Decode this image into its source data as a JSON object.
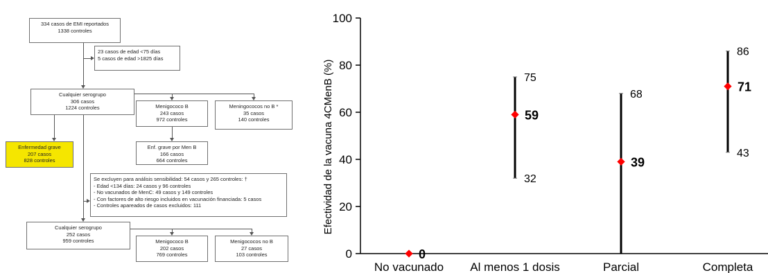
{
  "flowchart": {
    "top": [
      "334 casos de EMI reportados",
      "1338 controles"
    ],
    "exclusion1": [
      "23 casos de edad <75 días",
      "5 casos de edad >1825 días"
    ],
    "any1": [
      "Cualquier serogrupo",
      "306 casos",
      "1224 controles"
    ],
    "menb1": [
      "Menigococo B",
      "243 casos",
      "972 controles"
    ],
    "nonb1": [
      "Meningococos no B *",
      "35 casos",
      "140 controles"
    ],
    "severe": [
      "Enfermedad grave",
      "207 casos",
      "828 controles"
    ],
    "severe_menb": [
      "Enf. grave por Men B",
      "166 casos",
      "664 controles"
    ],
    "sensitivity": [
      "Se excluyen para análisis sensibilidad: 54 casos y 265 controles: †",
      "- Edad <134 días: 24 casos y 96 controles",
      "- No vacunados de MenC: 49 casos y 149 controles",
      "- Con factores de alto riesgo incluidos en vacunación financiada: 5 casos",
      "- Controles apareados de casos excluidos: 111"
    ],
    "any2": [
      "Cualquier serogrupo",
      "252 casos",
      "959 controles"
    ],
    "menb2": [
      "Menigococo B",
      "202 casos",
      "769 controles"
    ],
    "nonb2": [
      "Menigococos no B",
      "27 casos",
      "103 controles"
    ]
  },
  "chart_data": {
    "type": "scatter",
    "ylabel": "Efectividad de la vacuna 4CMenB (%)",
    "ylim": [
      0,
      100
    ],
    "yticks": [
      "0",
      "20",
      "40",
      "60",
      "80",
      "100"
    ],
    "categories": [
      "No vacunado",
      "Al menos 1 dosis",
      "Parcial",
      "Completa"
    ],
    "points": [
      {
        "category": "No vacunado",
        "value": 0,
        "label": "0",
        "lower": null,
        "upper": null,
        "lower_label": "",
        "upper_label": ""
      },
      {
        "category": "Al menos 1 dosis",
        "value": 59,
        "label": "59",
        "lower": 32,
        "upper": 75,
        "lower_label": "32",
        "upper_label": "75"
      },
      {
        "category": "Parcial",
        "value": 39,
        "label": "39",
        "lower": 0,
        "upper": 68,
        "lower_label": "",
        "upper_label": "68"
      },
      {
        "category": "Completa",
        "value": 71,
        "label": "71",
        "lower": 43,
        "upper": 86,
        "lower_label": "43",
        "upper_label": "86"
      }
    ],
    "colors": {
      "point": "#ff0000",
      "bar": "#000000",
      "axis": "#000000"
    }
  }
}
